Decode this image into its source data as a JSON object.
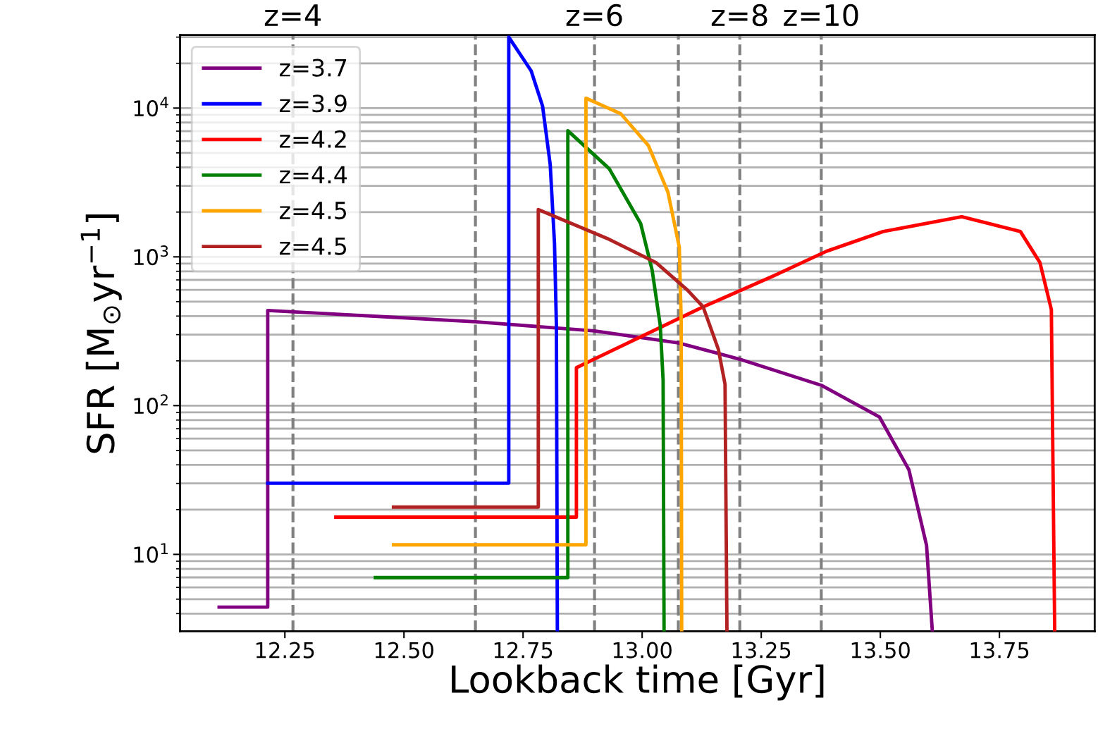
{
  "chart_data": {
    "type": "line",
    "xlabel": "Lookback time [Gyr]",
    "ylabel": "SFR [M$_{⊙}$yr$^{−1}$]",
    "xlim": [
      12.03,
      13.95
    ],
    "xticks": [
      12.25,
      {
        "value": 12.5,
        "label": "12.50"
      },
      12.75,
      {
        "value": 13.0,
        "label": "13.00"
      },
      13.25,
      {
        "value": 13.5,
        "label": "13.50"
      },
      13.75
    ],
    "annotations": [
      "z=4",
      "z=6",
      "z=8",
      "z=10"
    ],
    "ylim": [
      3.04,
      31000
    ],
    "log": "y",
    "yticks": [
      {
        "value": 10,
        "label": "10$^{1}$"
      },
      {
        "value": 100,
        "label": "10$^{2}$"
      },
      {
        "value": 1000,
        "label": "10$^{3}$"
      },
      {
        "value": 10000,
        "label": "10$^{4}$"
      }
    ],
    "grid": "y",
    "legend": "top left",
    "line_style": "solid",
    "marker": "none",
    "series": [
      {
        "name": "z=3.7",
        "color": "#800080",
        "x": [
          12.112,
          12.214,
          12.214,
          12.4,
          12.65,
          12.9,
          13.076,
          13.205,
          13.376,
          13.498,
          13.56,
          13.597,
          13.609
        ],
        "values": [
          4.42,
          4.42,
          436,
          405,
          366,
          318,
          264,
          205,
          137,
          84,
          37,
          11.5,
          3.1
        ]
      },
      {
        "name": "z=3.9",
        "color": "#0000ff",
        "x": [
          12.214,
          12.72,
          12.72,
          12.767,
          12.791,
          12.807,
          12.816,
          12.82,
          12.822
        ],
        "values": [
          30.1,
          30.1,
          30000,
          17800,
          10300,
          4170,
          1230,
          346,
          3.1
        ]
      },
      {
        "name": "z=4.2",
        "color": "#ff0000",
        "x": [
          12.357,
          12.862,
          12.862,
          13.128,
          13.276,
          13.387,
          13.506,
          13.671,
          13.794,
          13.835,
          13.859,
          13.866
        ],
        "values": [
          17.8,
          17.8,
          180,
          461,
          745,
          1090,
          1480,
          1860,
          1480,
          916,
          442,
          3.1
        ]
      },
      {
        "name": "z=4.4",
        "color": "#008000",
        "x": [
          12.44,
          12.844,
          12.844,
          12.931,
          12.997,
          13.021,
          13.038,
          13.044,
          13.046
        ],
        "values": [
          6.98,
          6.98,
          7050,
          3910,
          1670,
          813,
          346,
          148,
          3.1
        ]
      },
      {
        "name": "z=4.5",
        "color": "#ffa500",
        "x": [
          12.478,
          12.882,
          12.882,
          12.955,
          13.013,
          13.054,
          13.078,
          13.082,
          13.083
        ],
        "values": [
          11.6,
          11.6,
          11650,
          9170,
          5610,
          2730,
          1160,
          366,
          3.1
        ]
      },
      {
        "name": "z=4.5",
        "color": "#b22222",
        "x": [
          12.478,
          12.782,
          12.782,
          12.931,
          13.029,
          13.095,
          13.128,
          13.16,
          13.174,
          13.178
        ],
        "values": [
          20.8,
          20.8,
          2080,
          1310,
          916,
          598,
          461,
          239,
          139,
          3.1
        ]
      }
    ],
    "ref_lines": [
      {
        "axis": "x",
        "value": 12.267,
        "color": "#808080",
        "line_style": "dashed"
      },
      {
        "axis": "x",
        "value": 12.9,
        "color": "#808080",
        "line_style": "dashed"
      },
      {
        "axis": "x",
        "value": 13.205,
        "color": "#808080",
        "line_style": "dashed"
      },
      {
        "axis": "x",
        "value": 13.376,
        "color": "#808080",
        "line_style": "dashed"
      },
      {
        "axis": "x",
        "value": 12.65,
        "color": "#808080",
        "line_style": "dashed"
      },
      {
        "axis": "x",
        "value": 13.076,
        "color": "#808080",
        "line_style": "dashed"
      }
    ]
  }
}
